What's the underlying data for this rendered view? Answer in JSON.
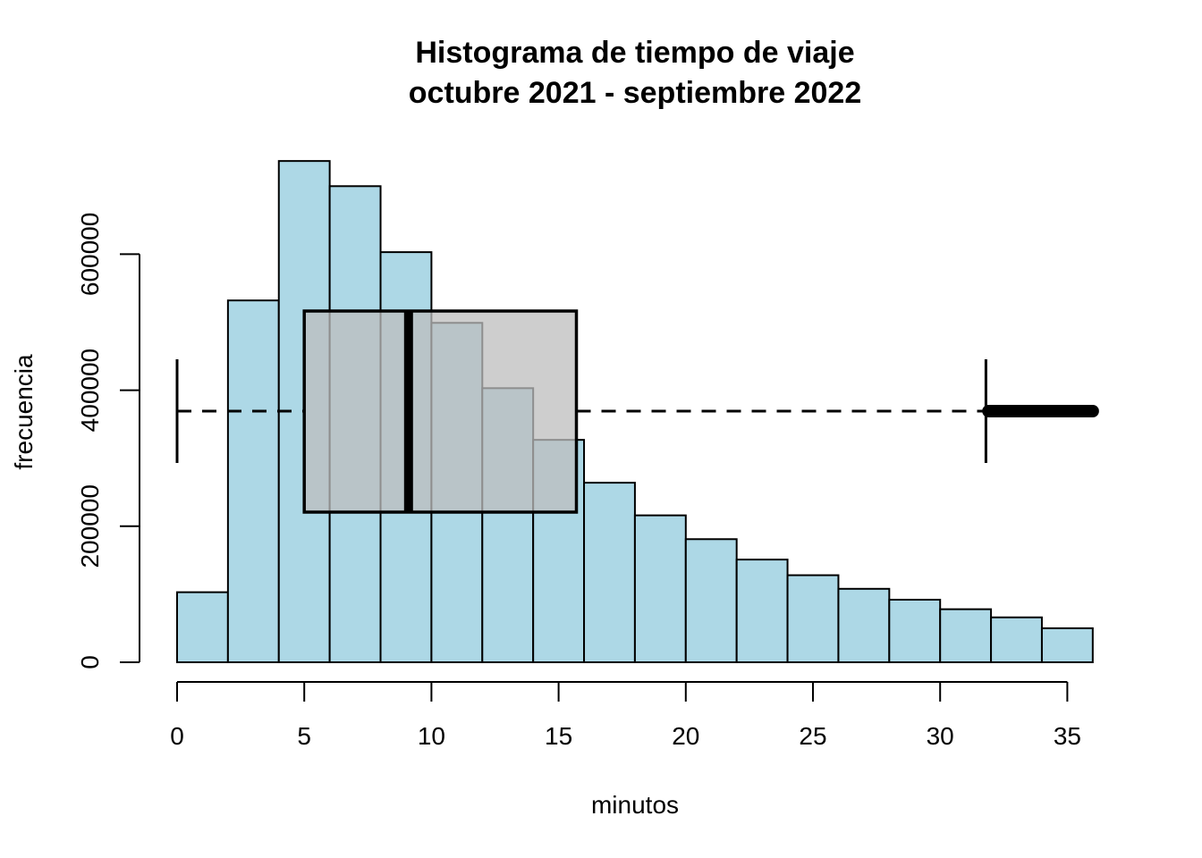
{
  "chart_data": {
    "type": "bar",
    "subtype": "histogram-with-horizontal-boxplot",
    "title": "Histograma de tiempo de viaje",
    "subtitle": "octubre 2021 - septiembre 2022",
    "xlabel": "minutos",
    "ylabel": "frecuencia",
    "xlim": [
      0,
      36
    ],
    "ylim": [
      0,
      737000
    ],
    "x_ticks": [
      0,
      5,
      10,
      15,
      20,
      25,
      30,
      35
    ],
    "x_tick_labels": [
      "0",
      "5",
      "10",
      "15",
      "20",
      "25",
      "30",
      "35"
    ],
    "y_ticks": [
      0,
      200000,
      400000,
      600000
    ],
    "y_tick_labels": [
      "0",
      "200000",
      "400000",
      "600000"
    ],
    "bins": [
      {
        "start": 0,
        "end": 2,
        "count": 103000
      },
      {
        "start": 2,
        "end": 4,
        "count": 532000
      },
      {
        "start": 4,
        "end": 6,
        "count": 737000
      },
      {
        "start": 6,
        "end": 8,
        "count": 700000
      },
      {
        "start": 8,
        "end": 10,
        "count": 603000
      },
      {
        "start": 10,
        "end": 12,
        "count": 499000
      },
      {
        "start": 12,
        "end": 14,
        "count": 403000
      },
      {
        "start": 14,
        "end": 16,
        "count": 327000
      },
      {
        "start": 16,
        "end": 18,
        "count": 264000
      },
      {
        "start": 18,
        "end": 20,
        "count": 216000
      },
      {
        "start": 20,
        "end": 22,
        "count": 181000
      },
      {
        "start": 22,
        "end": 24,
        "count": 151000
      },
      {
        "start": 24,
        "end": 26,
        "count": 128000
      },
      {
        "start": 26,
        "end": 28,
        "count": 108000
      },
      {
        "start": 28,
        "end": 30,
        "count": 92000
      },
      {
        "start": 30,
        "end": 32,
        "count": 78000
      },
      {
        "start": 32,
        "end": 34,
        "count": 66000
      },
      {
        "start": 34,
        "end": 36,
        "count": 50000
      }
    ],
    "boxplot": {
      "min": 0,
      "q1": 5.0,
      "median": 9.1,
      "q3": 15.7,
      "upper_whisker": 31.8,
      "outliers_from": 31.9,
      "outliers_to": 36
    },
    "colors": {
      "bars": "#add8e6",
      "box_fill": "#bebebe",
      "box_fill_opacity": 0.75,
      "stroke": "#000000"
    }
  }
}
